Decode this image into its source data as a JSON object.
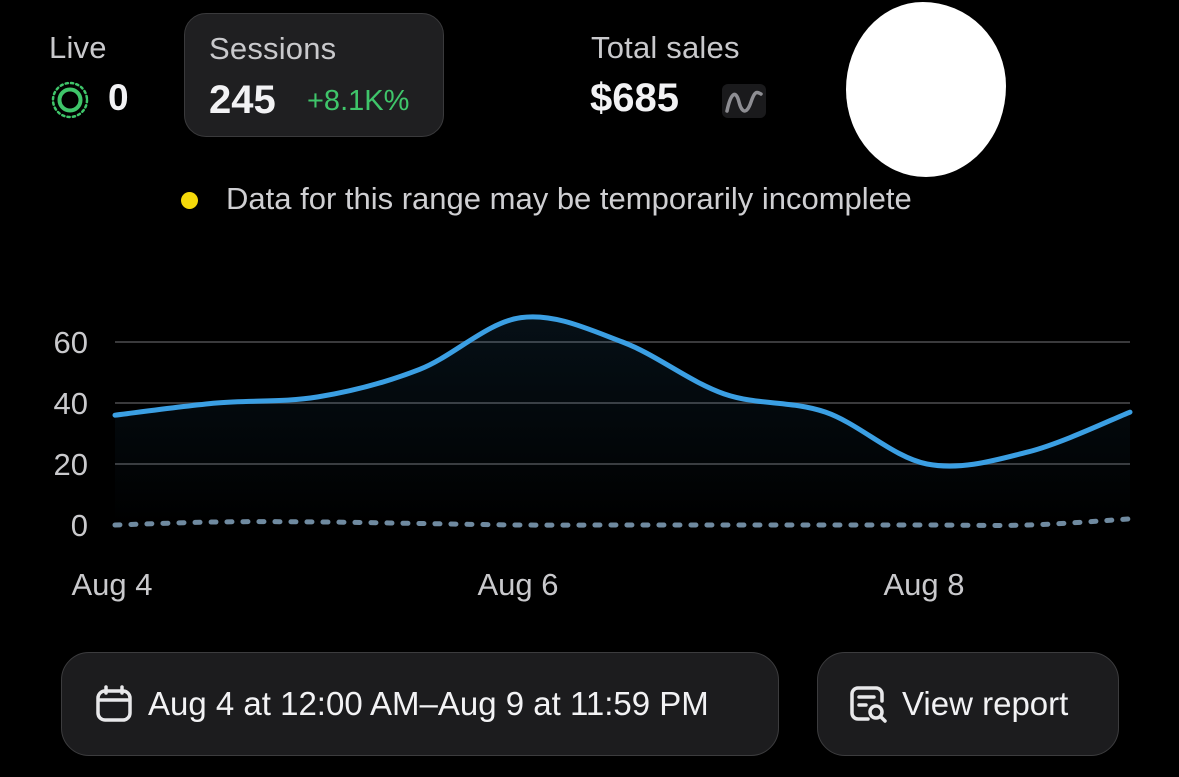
{
  "live": {
    "label": "Live",
    "value": "0",
    "icon": "live-pulse-icon",
    "color": "#3fc56a"
  },
  "sessions": {
    "label": "Sessions",
    "value": "245",
    "change": "+8.1K%",
    "change_color": "#3fc56a"
  },
  "sales": {
    "label": "Total sales",
    "value": "$685",
    "icon": "trend-sparkline-icon"
  },
  "notice": {
    "text": "Data for this range may be temporarily incomplete",
    "dot_color": "#f5d90a"
  },
  "chart_data": {
    "type": "line",
    "x": [
      "Aug 4",
      "Aug 4.5",
      "Aug 5",
      "Aug 5.5",
      "Aug 6",
      "Aug 6.5",
      "Aug 7",
      "Aug 7.5",
      "Aug 8",
      "Aug 8.5",
      "Aug 9"
    ],
    "x_numeric": [
      4,
      4.5,
      5,
      5.5,
      6,
      6.5,
      7,
      7.5,
      8,
      8.5,
      9
    ],
    "x_ticks": [
      {
        "value": 4,
        "label": "Aug 4"
      },
      {
        "value": 6,
        "label": "Aug 6"
      },
      {
        "value": 8,
        "label": "Aug 8"
      }
    ],
    "y_ticks": [
      0,
      20,
      40,
      60
    ],
    "ylim": [
      0,
      60
    ],
    "xlim": [
      4,
      9
    ],
    "series": [
      {
        "values": [
          36,
          40,
          42,
          51,
          68,
          60,
          43,
          37,
          20,
          24,
          37
        ],
        "color": "#3b9fe3",
        "style": "solid"
      },
      {
        "values": [
          0,
          1,
          1,
          0.5,
          0,
          0,
          0,
          0,
          0,
          0,
          2
        ],
        "color": "#6f8aa0",
        "style": "dotted"
      }
    ],
    "grid": true,
    "legend": "none"
  },
  "date_range": {
    "label": "Aug 4 at 12:00 AM–Aug 9 at 11:59 PM",
    "icon": "calendar-icon"
  },
  "view_report": {
    "label": "View report",
    "icon": "report-search-icon"
  },
  "colors": {
    "background": "#000000",
    "card": "#1f1f21",
    "grid": "#3a3a3c"
  }
}
